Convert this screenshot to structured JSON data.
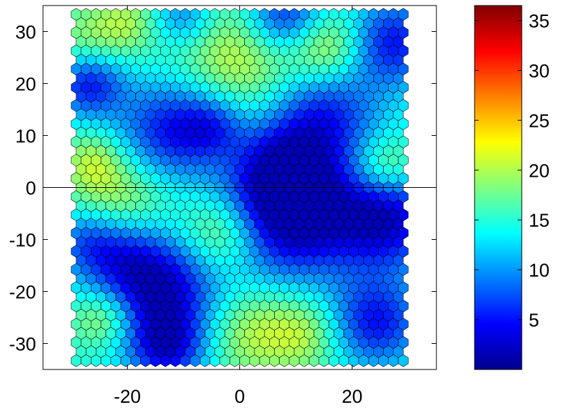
{
  "chart_data": {
    "type": "heatmap",
    "subtype": "hexagonal-grid",
    "title": "",
    "xlabel": "",
    "ylabel": "",
    "xlim": [
      -35,
      35
    ],
    "ylim": [
      -35,
      35
    ],
    "x_ticks": [
      {
        "value": -20,
        "label": "-20"
      },
      {
        "value": 0,
        "label": "0"
      },
      {
        "value": 20,
        "label": "20"
      }
    ],
    "y_ticks": [
      {
        "value": 30,
        "label": "30"
      },
      {
        "value": 20,
        "label": "20"
      },
      {
        "value": 10,
        "label": "10"
      },
      {
        "value": 0,
        "label": "0"
      },
      {
        "value": -10,
        "label": "-10"
      },
      {
        "value": -20,
        "label": "-20"
      },
      {
        "value": -30,
        "label": "-30"
      }
    ],
    "reference_line": {
      "y": 0
    },
    "grid": false,
    "colormap": "jet",
    "colorbar": {
      "position": "right",
      "range": [
        0,
        36.5
      ],
      "ticks": [
        {
          "value": 5,
          "label": "5"
        },
        {
          "value": 10,
          "label": "10"
        },
        {
          "value": 15,
          "label": "15"
        },
        {
          "value": 20,
          "label": "20"
        },
        {
          "value": 25,
          "label": "25"
        },
        {
          "value": 30,
          "label": "30"
        },
        {
          "value": 35,
          "label": "35"
        }
      ]
    },
    "hex_grid": {
      "x_range": [
        -29.1,
        29.1
      ],
      "y_range": [
        -33.3,
        33.3
      ],
      "columns": 34,
      "rows": 39,
      "value_range": [
        2,
        22
      ]
    },
    "field": {
      "base": 15,
      "features": [
        {
          "center": [
            -27,
            20
          ],
          "amplitude": -10,
          "radius": 4.5
        },
        {
          "center": [
            -12,
            11
          ],
          "amplitude": -10,
          "radius": 7
        },
        {
          "center": [
            -5,
            12
          ],
          "amplitude": -5,
          "radius": 4
        },
        {
          "center": [
            8,
            33
          ],
          "amplitude": -10,
          "radius": 5
        },
        {
          "center": [
            -10,
            33
          ],
          "amplitude": -6,
          "radius": 4
        },
        {
          "center": [
            27,
            28
          ],
          "amplitude": -10,
          "radius": 6
        },
        {
          "center": [
            15,
            14
          ],
          "amplitude": -9,
          "radius": 7
        },
        {
          "center": [
            8,
            3
          ],
          "amplitude": -11,
          "radius": 6.5
        },
        {
          "center": [
            9,
            -7
          ],
          "amplitude": -12,
          "radius": 8
        },
        {
          "center": [
            26,
            -6
          ],
          "amplitude": -12,
          "radius": 7
        },
        {
          "center": [
            -22,
            -12
          ],
          "amplitude": -8,
          "radius": 6
        },
        {
          "center": [
            -14,
            -20
          ],
          "amplitude": -12,
          "radius": 7
        },
        {
          "center": [
            -13,
            -31
          ],
          "amplitude": -10,
          "radius": 5
        },
        {
          "center": [
            24,
            -26
          ],
          "amplitude": -10,
          "radius": 6
        },
        {
          "center": [
            -28,
            -10
          ],
          "amplitude": -4,
          "radius": 4
        },
        {
          "center": [
            -24,
            -25
          ],
          "amplitude": 6,
          "radius": 4
        },
        {
          "center": [
            -21,
            -3
          ],
          "amplitude": 6,
          "radius": 6
        },
        {
          "center": [
            -3,
            -9
          ],
          "amplitude": 6,
          "radius": 5
        },
        {
          "center": [
            0,
            25
          ],
          "amplitude": 6,
          "radius": 8
        },
        {
          "center": [
            16,
            27
          ],
          "amplitude": 7,
          "radius": 5
        },
        {
          "center": [
            -27,
            28
          ],
          "amplitude": 4,
          "radius": 5
        },
        {
          "center": [
            -20,
            32
          ],
          "amplitude": 4,
          "radius": 4
        },
        {
          "center": [
            2,
            -28
          ],
          "amplitude": 5,
          "radius": 6
        },
        {
          "center": [
            12,
            -28
          ],
          "amplitude": 5,
          "radius": 5
        },
        {
          "center": [
            26,
            4
          ],
          "amplitude": 6,
          "radius": 4
        },
        {
          "center": [
            -26,
            5
          ],
          "amplitude": 5,
          "radius": 4
        }
      ]
    }
  }
}
